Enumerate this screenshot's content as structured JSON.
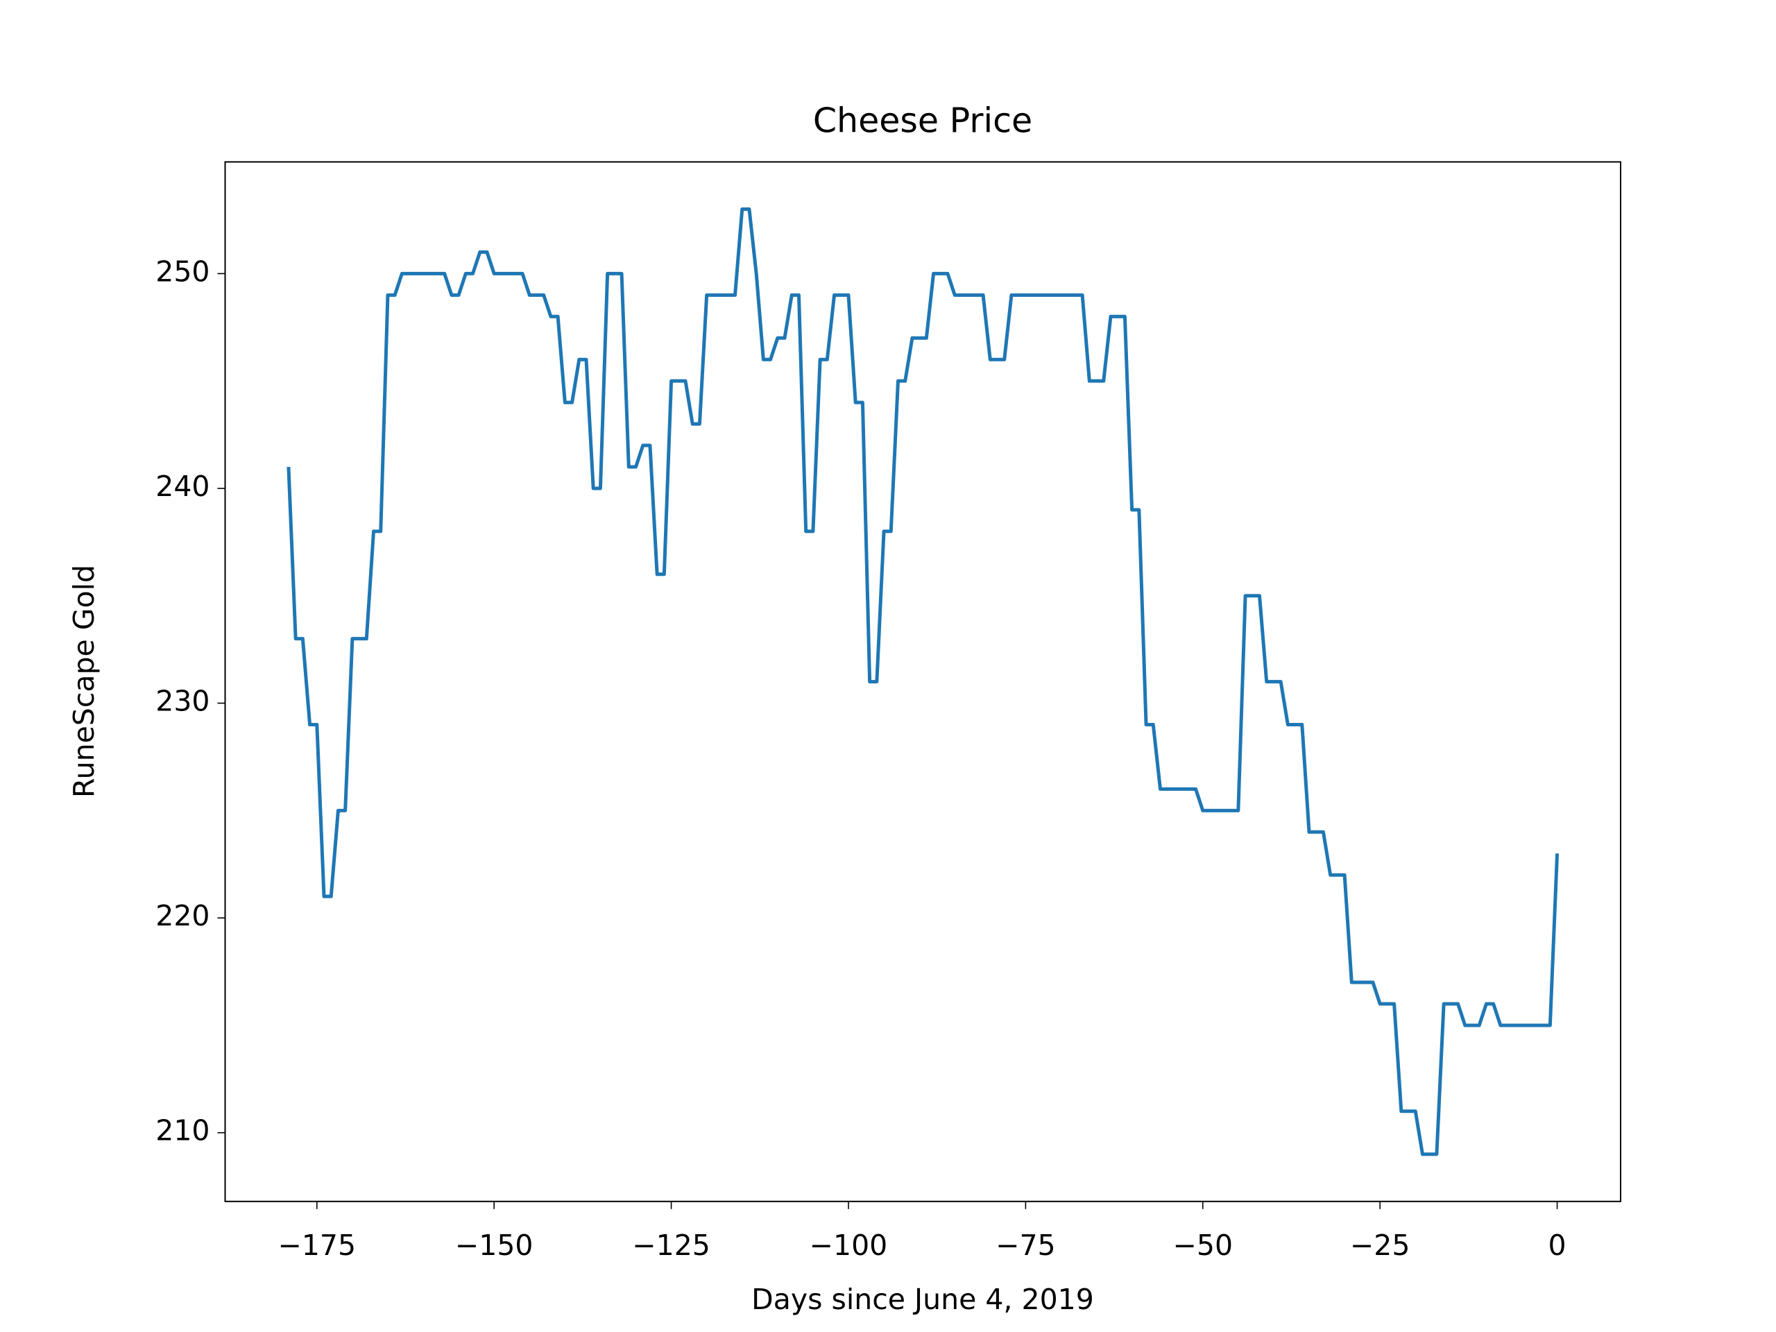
{
  "chart_data": {
    "type": "line",
    "title": "Cheese Price",
    "xlabel": "Days since June 4, 2019",
    "ylabel": "RuneScape Gold",
    "x": [
      -179,
      -178,
      -177,
      -176,
      -175,
      -174,
      -173,
      -172,
      -171,
      -170,
      -169,
      -168,
      -167,
      -166,
      -165,
      -164,
      -163,
      -162,
      -161,
      -160,
      -159,
      -158,
      -157,
      -156,
      -155,
      -154,
      -153,
      -152,
      -151,
      -150,
      -149,
      -148,
      -147,
      -146,
      -145,
      -144,
      -143,
      -142,
      -141,
      -140,
      -139,
      -138,
      -137,
      -136,
      -135,
      -134,
      -133,
      -132,
      -131,
      -130,
      -129,
      -128,
      -127,
      -126,
      -125,
      -124,
      -123,
      -122,
      -121,
      -120,
      -119,
      -118,
      -117,
      -116,
      -115,
      -114,
      -113,
      -112,
      -111,
      -110,
      -109,
      -108,
      -107,
      -106,
      -105,
      -104,
      -103,
      -102,
      -101,
      -100,
      -99,
      -98,
      -97,
      -96,
      -95,
      -94,
      -93,
      -92,
      -91,
      -90,
      -89,
      -88,
      -87,
      -86,
      -85,
      -84,
      -83,
      -82,
      -81,
      -80,
      -79,
      -78,
      -77,
      -76,
      -75,
      -74,
      -73,
      -72,
      -71,
      -70,
      -69,
      -68,
      -67,
      -66,
      -65,
      -64,
      -63,
      -62,
      -61,
      -60,
      -59,
      -58,
      -57,
      -56,
      -55,
      -54,
      -53,
      -52,
      -51,
      -50,
      -49,
      -48,
      -47,
      -46,
      -45,
      -44,
      -43,
      -42,
      -41,
      -40,
      -39,
      -38,
      -37,
      -36,
      -35,
      -34,
      -33,
      -32,
      -31,
      -30,
      -29,
      -28,
      -27,
      -26,
      -25,
      -24,
      -23,
      -22,
      -21,
      -20,
      -19,
      -18,
      -17,
      -16,
      -15,
      -14,
      -13,
      -12,
      -11,
      -10,
      -9,
      -8,
      -7,
      -6,
      -5,
      -4,
      -3,
      -2,
      -1,
      0
    ],
    "series": [
      {
        "color": "#1f77b4",
        "values": [
          241,
          233,
          233,
          229,
          229,
          221,
          221,
          225,
          225,
          233,
          233,
          233,
          238,
          238,
          249,
          249,
          250,
          250,
          250,
          250,
          250,
          250,
          250,
          249,
          249,
          250,
          250,
          251,
          251,
          250,
          250,
          250,
          250,
          250,
          249,
          249,
          249,
          248,
          248,
          244,
          244,
          246,
          246,
          240,
          240,
          250,
          250,
          250,
          241,
          241,
          242,
          242,
          236,
          236,
          245,
          245,
          245,
          243,
          243,
          249,
          249,
          249,
          249,
          249,
          253,
          253,
          250,
          246,
          246,
          247,
          247,
          249,
          249,
          238,
          238,
          246,
          246,
          249,
          249,
          249,
          244,
          244,
          231,
          231,
          238,
          238,
          245,
          245,
          247,
          247,
          247,
          250,
          250,
          250,
          249,
          249,
          249,
          249,
          249,
          246,
          246,
          246,
          249,
          249,
          249,
          249,
          249,
          249,
          249,
          249,
          249,
          249,
          249,
          245,
          245,
          245,
          248,
          248,
          248,
          239,
          239,
          229,
          229,
          226,
          226,
          226,
          226,
          226,
          226,
          225,
          225,
          225,
          225,
          225,
          225,
          235,
          235,
          235,
          231,
          231,
          231,
          229,
          229,
          229,
          224,
          224,
          224,
          222,
          222,
          222,
          217,
          217,
          217,
          217,
          216,
          216,
          216,
          211,
          211,
          211,
          209,
          209,
          209,
          216,
          216,
          216,
          215,
          215,
          215,
          216,
          216,
          215,
          215,
          215,
          215,
          215,
          215,
          215,
          215,
          223
        ]
      }
    ],
    "xlim": [
      -187.95,
      8.95
    ],
    "xticks": [
      {
        "value": -175,
        "label": "−175"
      },
      {
        "value": -150,
        "label": "−150"
      },
      {
        "value": -125,
        "label": "−125"
      },
      {
        "value": -100,
        "label": "−100"
      },
      {
        "value": -75,
        "label": "−75"
      },
      {
        "value": -50,
        "label": "−50"
      },
      {
        "value": -25,
        "label": "−25"
      },
      0
    ],
    "ylim": [
      206.8,
      255.2
    ],
    "yticks": [
      210,
      220,
      230,
      240,
      250
    ]
  }
}
